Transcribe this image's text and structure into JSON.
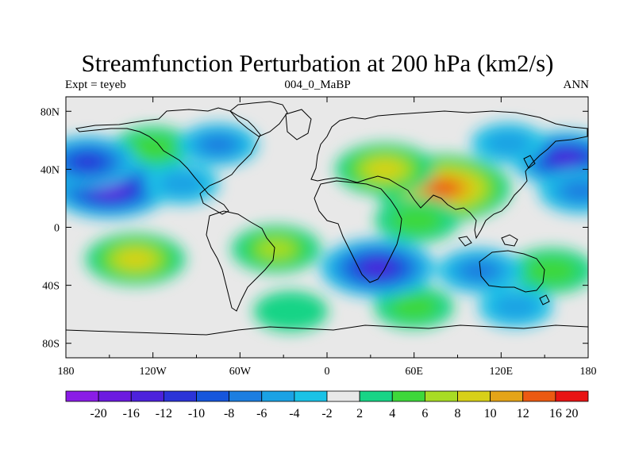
{
  "title": "Streamfunction Perturbation at 200 hPa (km2/s)",
  "subtitle_left": "Expt = teyeb",
  "subtitle_center": "004_0_MaBP",
  "subtitle_right": "ANN",
  "map": {
    "lon_range": [
      -180,
      180
    ],
    "lat_range": [
      -90,
      90
    ],
    "x_ticks": [
      {
        "value": -180,
        "label": "180"
      },
      {
        "value": -120,
        "label": "120W"
      },
      {
        "value": -60,
        "label": "60W"
      },
      {
        "value": 0,
        "label": "0"
      },
      {
        "value": 60,
        "label": "60E"
      },
      {
        "value": 120,
        "label": "120E"
      },
      {
        "value": 180,
        "label": "180"
      }
    ],
    "y_ticks": [
      {
        "value": 80,
        "label": "80N"
      },
      {
        "value": 40,
        "label": "40N"
      },
      {
        "value": 0,
        "label": "0"
      },
      {
        "value": -40,
        "label": "40S"
      },
      {
        "value": -80,
        "label": "80S"
      }
    ]
  },
  "colorbar": {
    "labels": [
      "-20",
      "-16",
      "-12",
      "-10",
      "-8",
      "-6",
      "-4",
      "-2",
      "2",
      "4",
      "6",
      "8",
      "10",
      "12",
      "16",
      "20"
    ],
    "colors": [
      "#8a1ce6",
      "#6c1ae0",
      "#4d22dc",
      "#2b34d8",
      "#1656dc",
      "#1c7ee0",
      "#1ba2e4",
      "#1ac2e6",
      "#e8e8e8",
      "#18d486",
      "#3ed83a",
      "#a8dc24",
      "#d8d018",
      "#e4a418",
      "#ec5a12",
      "#e81414"
    ]
  },
  "chart_data": {
    "type": "heatmap",
    "title": "Streamfunction Perturbation at 200 hPa (km2/s)",
    "levels": [
      -20,
      -16,
      -12,
      -10,
      -8,
      -6,
      -4,
      -2,
      2,
      4,
      6,
      8,
      10,
      12,
      16,
      20
    ],
    "features": [
      {
        "lon": 80,
        "lat": 27,
        "value": 16
      },
      {
        "lon": 40,
        "lat": 40,
        "value": 9
      },
      {
        "lon": 62,
        "lat": 5,
        "value": 6
      },
      {
        "lon": -132,
        "lat": -22,
        "value": 9
      },
      {
        "lon": -35,
        "lat": -15,
        "value": 7
      },
      {
        "lon": 155,
        "lat": -30,
        "value": 6
      },
      {
        "lon": 60,
        "lat": -55,
        "value": 5
      },
      {
        "lon": -25,
        "lat": -58,
        "value": 4
      },
      {
        "lon": -120,
        "lat": 55,
        "value": 5
      },
      {
        "lon": -150,
        "lat": 27,
        "value": -13
      },
      {
        "lon": -165,
        "lat": 45,
        "value": -9
      },
      {
        "lon": 165,
        "lat": 47,
        "value": -11
      },
      {
        "lon": 175,
        "lat": 25,
        "value": -6
      },
      {
        "lon": 35,
        "lat": -28,
        "value": -12
      },
      {
        "lon": 105,
        "lat": -30,
        "value": -6
      },
      {
        "lon": -75,
        "lat": 57,
        "value": -5
      },
      {
        "lon": 125,
        "lat": 58,
        "value": -4
      },
      {
        "lon": 130,
        "lat": -55,
        "value": -4
      },
      {
        "lon": -100,
        "lat": 30,
        "value": -4
      }
    ]
  }
}
